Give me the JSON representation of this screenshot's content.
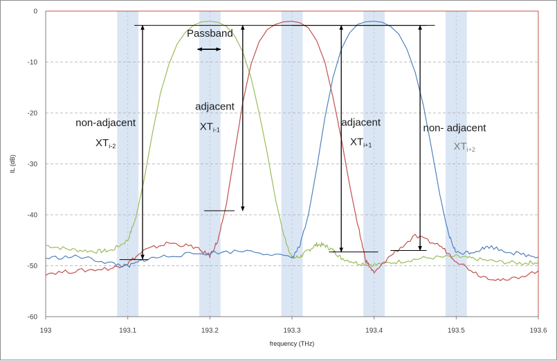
{
  "chart_data": {
    "type": "line",
    "xlabel": "frequency (THz)",
    "ylabel": "IL (dB)",
    "xlim": [
      193,
      193.6
    ],
    "ylim": [
      -60,
      0
    ],
    "x_ticks": [
      "193",
      "193.1",
      "193.2",
      "193.3",
      "193.4",
      "193.5",
      "193.6"
    ],
    "y_ticks": [
      "0",
      "-10",
      "-20",
      "-30",
      "-40",
      "-50",
      "-60"
    ],
    "grid": "horizontal dashed",
    "channel_bands": [
      {
        "center": 193.1,
        "width": 0.026
      },
      {
        "center": 193.2,
        "width": 0.026
      },
      {
        "center": 193.3,
        "width": 0.026
      },
      {
        "center": 193.4,
        "width": 0.026
      },
      {
        "center": 193.5,
        "width": 0.026
      }
    ],
    "colors": {
      "band": "#dbe6f4",
      "green": "#9bbb59",
      "red": "#c0504d",
      "blue": "#4f81bd",
      "arrow": "#000000"
    },
    "series": [
      {
        "color": "green",
        "x": [
          193.0,
          193.03,
          193.06,
          193.08,
          193.1,
          193.11,
          193.12,
          193.13,
          193.14,
          193.15,
          193.16,
          193.17,
          193.18,
          193.19,
          193.2,
          193.21,
          193.22,
          193.23,
          193.24,
          193.25,
          193.26,
          193.27,
          193.28,
          193.29,
          193.3,
          193.31,
          193.32,
          193.33,
          193.34,
          193.35,
          193.36,
          193.38,
          193.4,
          193.43,
          193.46,
          193.5,
          193.52,
          193.55,
          193.58,
          193.6
        ],
        "y": [
          -46,
          -46.8,
          -47.2,
          -47,
          -45,
          -40.5,
          -33,
          -24,
          -16,
          -10.5,
          -6.5,
          -4.2,
          -2.8,
          -2.1,
          -2,
          -2.2,
          -3,
          -4.8,
          -8,
          -13,
          -20,
          -28,
          -37,
          -44,
          -48.5,
          -48.2,
          -47,
          -45.8,
          -46,
          -47,
          -48.5,
          -49.5,
          -49.8,
          -49.2,
          -48.5,
          -48.2,
          -48.6,
          -49.2,
          -49.5,
          -49.3
        ]
      },
      {
        "color": "red",
        "x": [
          193.0,
          193.04,
          193.08,
          193.1,
          193.12,
          193.15,
          193.18,
          193.2,
          193.21,
          193.22,
          193.23,
          193.24,
          193.25,
          193.26,
          193.27,
          193.28,
          193.29,
          193.3,
          193.31,
          193.32,
          193.33,
          193.34,
          193.35,
          193.36,
          193.37,
          193.38,
          193.39,
          193.4,
          193.42,
          193.45,
          193.48,
          193.5,
          193.53,
          193.56,
          193.6
        ],
        "y": [
          -51.5,
          -51,
          -50.5,
          -49.5,
          -47,
          -45.5,
          -46.3,
          -48,
          -45,
          -38,
          -28,
          -18,
          -10.5,
          -6,
          -3.6,
          -2.6,
          -2.1,
          -2,
          -2.3,
          -3.3,
          -5.8,
          -10,
          -17,
          -25,
          -34,
          -42,
          -49,
          -51.5,
          -48,
          -44.2,
          -46,
          -49,
          -52,
          -53,
          -51
        ]
      },
      {
        "color": "blue",
        "x": [
          193.0,
          193.04,
          193.08,
          193.1,
          193.12,
          193.15,
          193.2,
          193.25,
          193.3,
          193.31,
          193.32,
          193.33,
          193.34,
          193.35,
          193.36,
          193.37,
          193.38,
          193.39,
          193.4,
          193.41,
          193.42,
          193.43,
          193.44,
          193.45,
          193.46,
          193.47,
          193.48,
          193.49,
          193.5,
          193.52,
          193.54,
          193.57,
          193.6
        ],
        "y": [
          -48.5,
          -48.2,
          -49.5,
          -50.2,
          -48.8,
          -48,
          -47.5,
          -47,
          -48.5,
          -46,
          -40,
          -31,
          -21,
          -13,
          -7.5,
          -4.3,
          -2.6,
          -2.1,
          -2,
          -2.2,
          -3,
          -4.5,
          -7.5,
          -12,
          -18.5,
          -27,
          -36,
          -43.5,
          -47.5,
          -47.3,
          -46.2,
          -47.5,
          -48.3
        ]
      }
    ],
    "annotations": [
      {
        "id": "passband",
        "text": "Passband",
        "x": 193.2,
        "y": -5
      },
      {
        "id": "adj1_line1",
        "text": "adjacent",
        "x": 193.206,
        "y": -19.4
      },
      {
        "id": "adj1_line2",
        "text": "XT",
        "sub": "i-1",
        "x": 193.2,
        "y": -23.3
      },
      {
        "id": "nonadj1_line1",
        "text": "non-adjacent",
        "x": 193.073,
        "y": -22.6
      },
      {
        "id": "nonadj1_line2",
        "text": "XT",
        "sub": "i-2",
        "x": 193.073,
        "y": -26.5
      },
      {
        "id": "adj2_line1",
        "text": "adjacent",
        "x": 193.384,
        "y": -22.5
      },
      {
        "id": "adj2_line2",
        "text": "XT",
        "sub": "i+1",
        "x": 193.384,
        "y": -26.3
      },
      {
        "id": "nonadj2_line1",
        "text": "non- adjacent",
        "x": 193.498,
        "y": -23.6
      },
      {
        "id": "nonadj2_line2",
        "text": "XT",
        "sub": "i+2",
        "x": 193.51,
        "y": -27.2
      }
    ],
    "arrows": [
      {
        "x": 193.118,
        "y_top": -2.8,
        "y_bottom": -48.7
      },
      {
        "x": 193.24,
        "y_top": -2.8,
        "y_bottom": -39.2
      },
      {
        "x": 193.36,
        "y_top": -2.8,
        "y_bottom": -47.3
      },
      {
        "x": 193.456,
        "y_top": -2.8,
        "y_bottom": -47
      }
    ],
    "ref_lines": [
      {
        "x1": 193.108,
        "x2": 193.474,
        "y": -2.8
      },
      {
        "x1": 193.3,
        "x2": 193.464,
        "y": -2.8
      },
      {
        "x1": 193.09,
        "x2": 193.125,
        "y": -48.8
      },
      {
        "x1": 193.193,
        "x2": 193.23,
        "y": -39.2
      },
      {
        "x1": 193.345,
        "x2": 193.405,
        "y": -47.3
      },
      {
        "x1": 193.42,
        "x2": 193.464,
        "y": -47
      }
    ],
    "passband_arrow": {
      "x1": 193.185,
      "x2": 193.213,
      "y": -7.5
    }
  }
}
